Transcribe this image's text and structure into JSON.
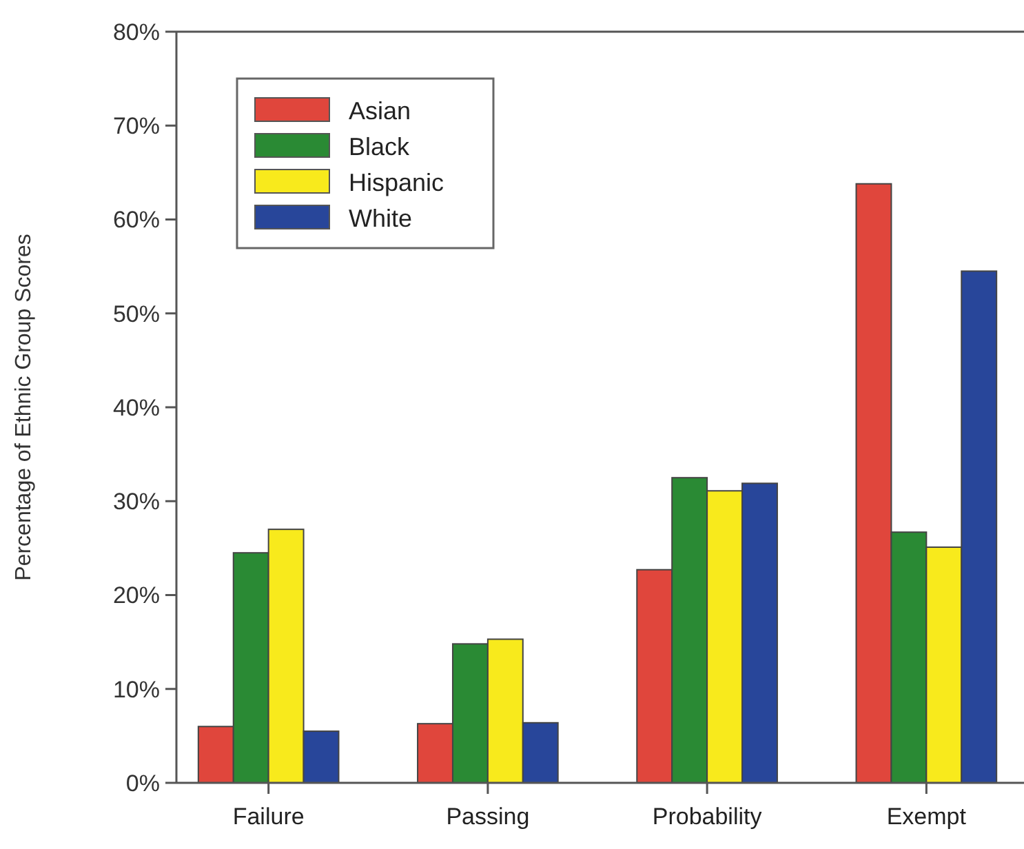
{
  "chart_data": {
    "type": "bar",
    "ylabel": "Percentage of Ethnic Group Scores",
    "categories": [
      "Failure",
      "Passing",
      "Probability",
      "Exempt"
    ],
    "series": [
      {
        "name": "Asian",
        "color": "#e0463c",
        "values": [
          6,
          6.3,
          22.7,
          63.8
        ]
      },
      {
        "name": "Black",
        "color": "#2a8a34",
        "values": [
          24.5,
          14.8,
          32.5,
          26.7
        ]
      },
      {
        "name": "Hispanic",
        "color": "#f8ea1c",
        "values": [
          27,
          15.3,
          31.1,
          25.1
        ]
      },
      {
        "name": "White",
        "color": "#28469a",
        "values": [
          5.5,
          6.4,
          31.9,
          54.5
        ]
      }
    ],
    "ylim": [
      0,
      80
    ],
    "yticks": [
      {
        "value": 0,
        "label": "0%"
      },
      {
        "value": 10,
        "label": "10%"
      },
      {
        "value": 20,
        "label": "20%"
      },
      {
        "value": 30,
        "label": "30%"
      },
      {
        "value": 40,
        "label": "40%"
      },
      {
        "value": 50,
        "label": "50%"
      },
      {
        "value": 60,
        "label": "60%"
      },
      {
        "value": 70,
        "label": "70%"
      },
      {
        "value": 80,
        "label": "80%"
      }
    ],
    "grid": false,
    "legend": "top left"
  }
}
